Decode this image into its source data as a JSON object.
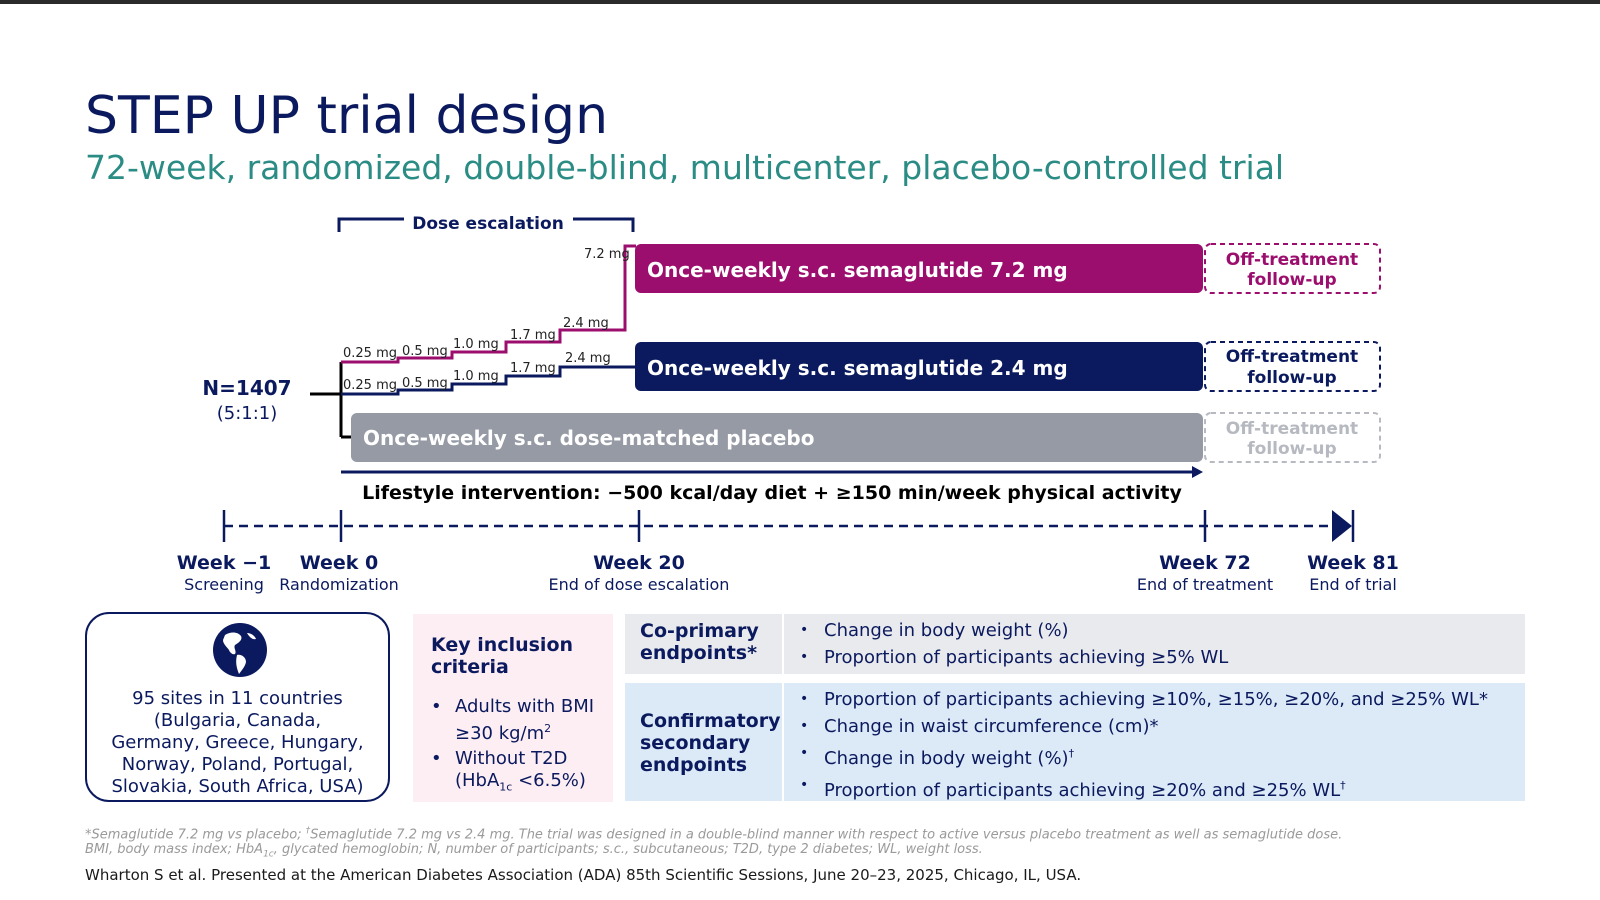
{
  "title": "STEP UP trial design",
  "subtitle": "72-week, randomized, double-blind, multicenter, placebo-controlled trial",
  "colors": {
    "navy": "#0b1a5e",
    "magenta": "#9b0e6d",
    "grey": "#959aa5",
    "teal": "#2a8c84"
  },
  "dose_escalation_label": "Dose escalation",
  "enrollment": {
    "n": "N=1407",
    "ratio": "(5:1:1)"
  },
  "arm_72": {
    "steps": [
      "0.25 mg",
      "0.5 mg",
      "1.0 mg",
      "1.7 mg",
      "2.4 mg",
      "7.2 mg"
    ],
    "label": "Once-weekly s.c. semaglutide 7.2 mg",
    "followup_line1": "Off-treatment",
    "followup_line2": "follow-up"
  },
  "arm_24": {
    "steps": [
      "0.25 mg",
      "0.5 mg",
      "1.0 mg",
      "1.7 mg",
      "2.4 mg"
    ],
    "label": "Once-weekly s.c. semaglutide 2.4 mg",
    "followup_line1": "Off-treatment",
    "followup_line2": "follow-up"
  },
  "arm_placebo": {
    "label": "Once-weekly s.c. dose-matched placebo",
    "followup_line1": "Off-treatment",
    "followup_line2": "follow-up"
  },
  "lifestyle": "Lifestyle intervention: −500 kcal/day diet + ≥150 min/week physical activity",
  "timeline": [
    {
      "week": "Week −1",
      "desc": "Screening"
    },
    {
      "week": "Week 0",
      "desc": "Randomization"
    },
    {
      "week": "Week 20",
      "desc": "End of dose escalation"
    },
    {
      "week": "Week 72",
      "desc": "End of treatment"
    },
    {
      "week": "Week 81",
      "desc": "End of trial"
    }
  ],
  "sites": {
    "icon": "globe-icon",
    "line1": "95 sites in 11 countries",
    "line2": "(Bulgaria, Canada,",
    "line3": "Germany, Greece, Hungary,",
    "line4": "Norway, Poland, Portugal,",
    "line5": "Slovakia, South Africa, USA)"
  },
  "inclusion": {
    "title_line1": "Key inclusion",
    "title_line2": "criteria",
    "item1_line1": "Adults with BMI",
    "item1_line2_a": "≥30 kg/m",
    "item1_line2_sup": "2",
    "item2_line1": "Without T2D",
    "item2_line2_a": "(HbA",
    "item2_line2_sub": "1c",
    "item2_line2_b": " <6.5%)"
  },
  "coprimary": {
    "label_line1": "Co-primary",
    "label_line2": "endpoints*",
    "item1": "Change in body weight (%)",
    "item2": "Proportion of participants achieving ≥5% WL"
  },
  "confirmatory": {
    "label_line1": "Confirmatory",
    "label_line2": "secondary",
    "label_line3": "endpoints",
    "item1": "Proportion of participants achieving ≥10%, ≥15%, ≥20%, and ≥25% WL*",
    "item2": "Change in waist circumference (cm)*",
    "item3": "Change in body weight (%)",
    "item3_sup": "†",
    "item4": "Proportion of participants achieving ≥20% and ≥25% WL",
    "item4_sup": "†"
  },
  "footnotes": {
    "line1_a": "*Semaglutide 7.2 mg vs placebo; ",
    "line1_dagger": "†",
    "line1_b": "Semaglutide 7.2 mg vs 2.4 mg. The trial was designed in a double-blind manner with respect to active versus placebo treatment as well as semaglutide dose.",
    "line2_a": "BMI, body mass index; HbA",
    "line2_sub": "1c",
    "line2_b": ", glycated hemoglobin; N, number of participants; s.c., subcutaneous; T2D, type 2 diabetes; WL, weight loss."
  },
  "reference": "Wharton S et al. Presented at the American Diabetes Association (ADA) 85th Scientific Sessions, June 20–23, 2025, Chicago, IL, USA."
}
